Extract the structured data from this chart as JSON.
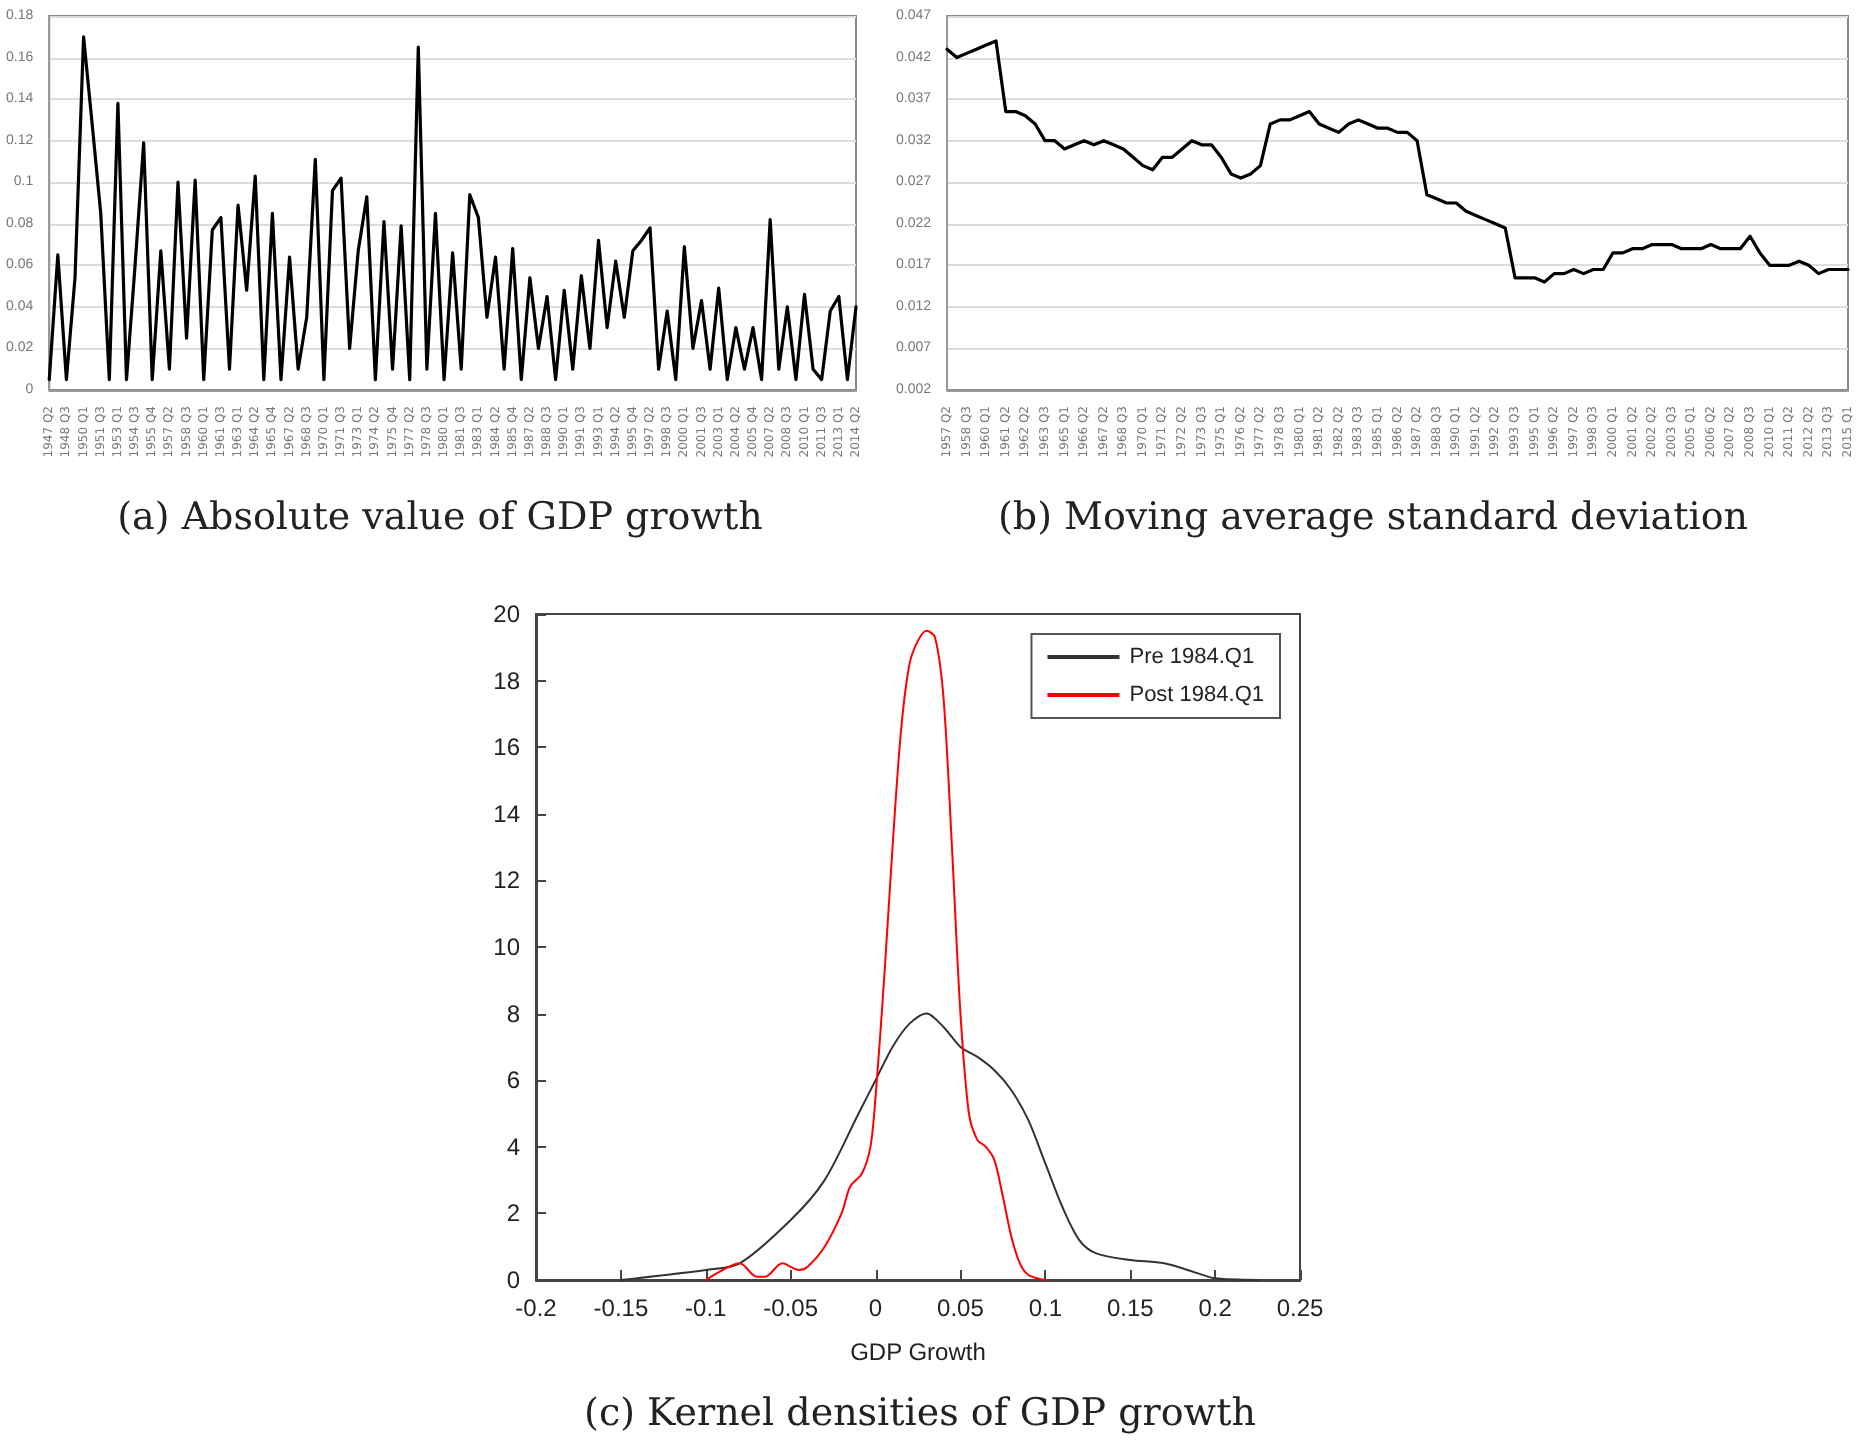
{
  "chart_data": [
    {
      "type": "line",
      "title": "(a) Absolute value of GDP growth",
      "categories": [
        "1947 Q2",
        null,
        "1948 Q3",
        null,
        "1950 Q1",
        null,
        "1951 Q3",
        null,
        "1953 Q1",
        null,
        "1954 Q3",
        null,
        "1955 Q4",
        null,
        "1957 Q2",
        null,
        "1958 Q3",
        null,
        "1960 Q1",
        null,
        "1961 Q3",
        null,
        "1963 Q1",
        null,
        "1964 Q2",
        null,
        "1965 Q4",
        null,
        "1967 Q2",
        null,
        "1968 Q3",
        null,
        "1970 Q1",
        null,
        "1971 Q3",
        null,
        "1973 Q1",
        null,
        "1974 Q2",
        null,
        "1975 Q4",
        null,
        "1977 Q2",
        null,
        "1978 Q3",
        null,
        "1980 Q1",
        null,
        "1981 Q3",
        null,
        "1983 Q1",
        null,
        "1984 Q2",
        null,
        "1985 Q4",
        null,
        "1987 Q2",
        null,
        "1988 Q3",
        null,
        "1990 Q1",
        null,
        "1991 Q3",
        null,
        "1993 Q1",
        null,
        "1994 Q2",
        null,
        "1995 Q4",
        null,
        "1997 Q2",
        null,
        "1998 Q3",
        null,
        "2000 Q1",
        null,
        "2001 Q3",
        null,
        "2003 Q1",
        null,
        "2004 Q2",
        null,
        "2005 Q4",
        null,
        "2007 Q2",
        null,
        "2008 Q3",
        null,
        "2010 Q1",
        null,
        "2011 Q3",
        null,
        "2013 Q1",
        null,
        "2014 Q2"
      ],
      "series": [
        {
          "color": "#000000",
          "values": [
            0.005,
            0.065,
            0.005,
            0.054,
            0.17,
            0.128,
            0.085,
            0.005,
            0.138,
            0.005,
            0.06,
            0.119,
            0.005,
            0.067,
            0.01,
            0.1,
            0.025,
            0.101,
            0.005,
            0.077,
            0.083,
            0.01,
            0.089,
            0.048,
            0.103,
            0.005,
            0.085,
            0.005,
            0.064,
            0.01,
            0.035,
            0.111,
            0.005,
            0.096,
            0.102,
            0.02,
            0.067,
            0.093,
            0.005,
            0.081,
            0.01,
            0.079,
            0.005,
            0.165,
            0.01,
            0.085,
            0.005,
            0.066,
            0.01,
            0.094,
            0.083,
            0.035,
            0.064,
            0.01,
            0.068,
            0.005,
            0.054,
            0.02,
            0.045,
            0.005,
            0.048,
            0.01,
            0.055,
            0.02,
            0.072,
            0.03,
            0.062,
            0.035,
            0.067,
            0.072,
            0.078,
            0.01,
            0.038,
            0.005,
            0.069,
            0.02,
            0.043,
            0.01,
            0.049,
            0.005,
            0.03,
            0.01,
            0.03,
            0.005,
            0.082,
            0.01,
            0.04,
            0.005,
            0.046,
            0.01,
            0.005,
            0.038,
            0.045,
            0.005,
            0.04
          ]
        }
      ],
      "ylim": [
        0,
        0.18
      ],
      "yticks": [
        0,
        0.02,
        0.04,
        0.06,
        0.08,
        0.1,
        0.12,
        0.14,
        0.16,
        0.18
      ],
      "grid": "y",
      "marker": "none",
      "line_style": "solid"
    },
    {
      "type": "line",
      "title": "(b) Moving average standard deviation",
      "categories": [
        "1957 Q2",
        null,
        "1958 Q3",
        null,
        "1960 Q1",
        null,
        "1961 Q2",
        null,
        "1962 Q2",
        null,
        "1963 Q3",
        null,
        "1965 Q1",
        null,
        "1966 Q2",
        null,
        "1967 Q2",
        null,
        "1968 Q3",
        null,
        "1970 Q1",
        null,
        "1971 Q2",
        null,
        "1972 Q2",
        null,
        "1973 Q3",
        null,
        "1975 Q1",
        null,
        "1976 Q2",
        null,
        "1977 Q2",
        null,
        "1978 Q3",
        null,
        "1980 Q1",
        null,
        "1981 Q2",
        null,
        "1982 Q2",
        null,
        "1983 Q3",
        null,
        "1985 Q1",
        null,
        "1986 Q2",
        null,
        "1987 Q2",
        null,
        "1988 Q3",
        null,
        "1990 Q1",
        null,
        "1991 Q2",
        null,
        "1992 Q2",
        null,
        "1993 Q3",
        null,
        "1995 Q1",
        null,
        "1996 Q2",
        null,
        "1997 Q2",
        null,
        "1998 Q3",
        null,
        "2000 Q1",
        null,
        "2001 Q2",
        null,
        "2002 Q2",
        null,
        "2003 Q3",
        null,
        "2005 Q1",
        null,
        "2006 Q2",
        null,
        "2007 Q2",
        null,
        "2008 Q3",
        null,
        "2010 Q1",
        null,
        "2011 Q2",
        null,
        "2012 Q2",
        null,
        "2013 Q3",
        null,
        "2015 Q1"
      ],
      "series": [
        {
          "color": "#000000",
          "values": [
            0.043,
            0.042,
            0.0425,
            0.043,
            0.0435,
            0.044,
            0.0355,
            0.0355,
            0.035,
            0.034,
            0.032,
            0.032,
            0.031,
            0.0315,
            0.032,
            0.0315,
            0.032,
            0.0315,
            0.031,
            0.03,
            0.029,
            0.0285,
            0.03,
            0.03,
            0.031,
            0.032,
            0.0315,
            0.0315,
            0.03,
            0.028,
            0.0275,
            0.028,
            0.029,
            0.034,
            0.0345,
            0.0345,
            0.035,
            0.0355,
            0.034,
            0.0335,
            0.033,
            0.034,
            0.0345,
            0.034,
            0.0335,
            0.0335,
            0.033,
            0.033,
            0.032,
            0.0255,
            0.025,
            0.0245,
            0.0245,
            0.0235,
            0.023,
            0.0225,
            0.022,
            0.0215,
            0.0155,
            0.0155,
            0.0155,
            0.015,
            0.016,
            0.016,
            0.0165,
            0.016,
            0.0165,
            0.0165,
            0.0185,
            0.0185,
            0.019,
            0.019,
            0.0195,
            0.0195,
            0.0195,
            0.019,
            0.019,
            0.019,
            0.0195,
            0.019,
            0.019,
            0.019,
            0.0205,
            0.0185,
            0.017,
            0.017,
            0.017,
            0.0175,
            0.017,
            0.016,
            0.0165,
            0.0165,
            0.0165
          ]
        }
      ],
      "ylim": [
        0.002,
        0.047
      ],
      "yticks": [
        0.002,
        0.007,
        0.012,
        0.017,
        0.022,
        0.027,
        0.032,
        0.037,
        0.042,
        0.047
      ],
      "grid": "y",
      "marker": "none",
      "line_style": "solid"
    },
    {
      "type": "line",
      "title": "(c) Kernel densities of GDP growth",
      "xlabel": "GDP Growth",
      "series": [
        {
          "name": "Pre 1984.Q1",
          "color": "#333333",
          "x": [
            -0.15,
            -0.1,
            -0.08,
            -0.05,
            -0.03,
            -0.01,
            0,
            0.01,
            0.02,
            0.03,
            0.04,
            0.05,
            0.06,
            0.07,
            0.08,
            0.09,
            0.1,
            0.11,
            0.12,
            0.13,
            0.15,
            0.17,
            0.19,
            0.2,
            0.225
          ],
          "values": [
            0,
            0.3,
            0.5,
            1.8,
            3,
            5,
            6,
            7,
            7.7,
            8,
            7.6,
            7,
            6.7,
            6.3,
            5.7,
            4.8,
            3.5,
            2.2,
            1.2,
            0.8,
            0.6,
            0.5,
            0.2,
            0.05,
            0
          ]
        },
        {
          "name": "Post 1984.Q1",
          "color": "#ff0000",
          "x": [
            -0.1,
            -0.09,
            -0.08,
            -0.07,
            -0.065,
            -0.055,
            -0.045,
            -0.04,
            -0.03,
            -0.02,
            -0.015,
            -0.008,
            -0.003,
            0,
            0.005,
            0.01,
            0.015,
            0.02,
            0.025,
            0.03,
            0.035,
            0.04,
            0.045,
            0.05,
            0.055,
            0.06,
            0.065,
            0.07,
            0.075,
            0.08,
            0.085,
            0.09,
            0.1
          ],
          "values": [
            0,
            0.3,
            0.5,
            0.1,
            0.1,
            0.5,
            0.3,
            0.4,
            1,
            2,
            2.8,
            3.2,
            4,
            5.5,
            9,
            13,
            16.5,
            18.5,
            19.2,
            19.5,
            19.3,
            17.5,
            13,
            8,
            5,
            4.2,
            4,
            3.6,
            2.5,
            1.3,
            0.5,
            0.15,
            0
          ]
        }
      ],
      "xlim": [
        -0.2,
        0.25
      ],
      "xticks": [
        -0.2,
        -0.15,
        -0.1,
        -0.05,
        0,
        0.05,
        0.1,
        0.15,
        0.2,
        0.25
      ],
      "ylim": [
        0,
        20
      ],
      "yticks": [
        0,
        2,
        4,
        6,
        8,
        10,
        12,
        14,
        16,
        18,
        20
      ],
      "grid": false,
      "legend": "top right",
      "marker": "none",
      "line_style": "solid"
    }
  ]
}
